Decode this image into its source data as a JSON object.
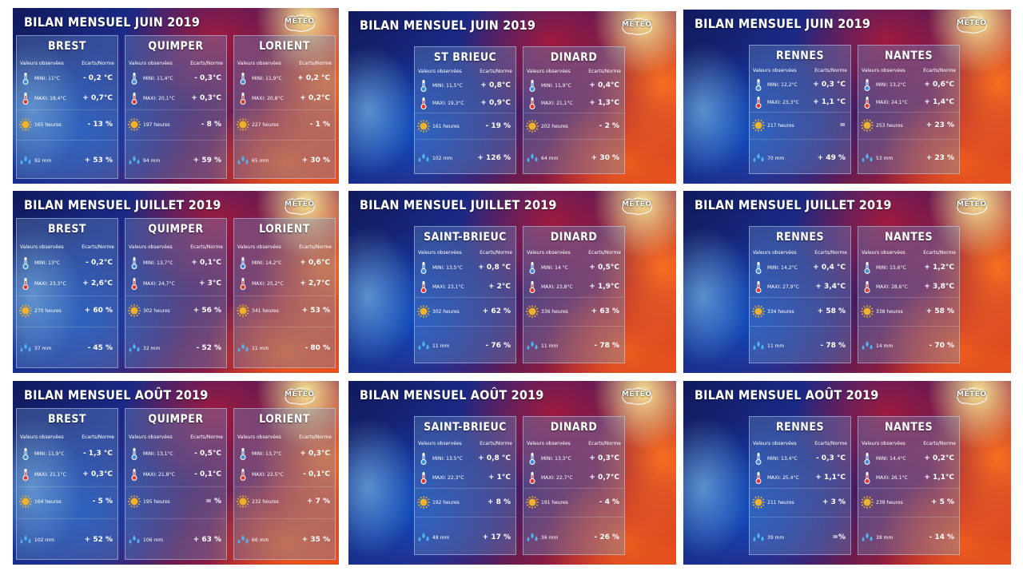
{
  "logo_text": "MÉTÉO",
  "header_obs": "Valeurs observées",
  "header_norm": "Ecarts/Norme",
  "colors": {
    "sun": "#f0b22a",
    "drop": "#4fb2ef",
    "thermo_blue": "#3f8fe0",
    "thermo_red": "#e03a2a"
  },
  "icons": {
    "mini": "thermometer-cold-icon",
    "maxi": "thermometer-hot-icon",
    "sun": "sun-icon",
    "rain": "raindrops-icon"
  },
  "panels": [
    {
      "title": "BILAN MENSUEL JUIN 2019",
      "cities": [
        {
          "name": "BREST",
          "mini": "MINI: 11°C",
          "mini_d": "- 0,2 °C",
          "maxi": "MAXI: 19,4°C",
          "maxi_d": "+ 0,7°C",
          "sun": "165 heures",
          "sun_d": "- 13 %",
          "rain": "92 mm",
          "rain_d": "+ 53 %"
        },
        {
          "name": "QUIMPER",
          "mini": "MINI: 11,4°C",
          "mini_d": "- 0,3°C",
          "maxi": "MAXI: 20,1°C",
          "maxi_d": "+ 0,3°C",
          "sun": "197 heures",
          "sun_d": "- 8 %",
          "rain": "94 mm",
          "rain_d": "+ 59 %"
        },
        {
          "name": "LORIENT",
          "mini": "MINI: 11,9°C",
          "mini_d": "+ 0,2 °C",
          "maxi": "MAXI: 20,8°C",
          "maxi_d": "+ 0,2°C",
          "sun": "227 heures",
          "sun_d": "- 1 %",
          "rain": "65 mm",
          "rain_d": "+ 30 %"
        }
      ]
    },
    {
      "title": "BILAN MENSUEL JUIN 2019",
      "cities": [
        {
          "name": "ST BRIEUC",
          "mini": "MINI: 11,5°C",
          "mini_d": "+ 0,8°C",
          "maxi": "MAXI: 19,3°C",
          "maxi_d": "+ 0,9°C",
          "sun": "161 heures",
          "sun_d": "- 19 %",
          "rain": "102 mm",
          "rain_d": "+ 126 %"
        },
        {
          "name": "DINARD",
          "mini": "MINI: 11,9°C",
          "mini_d": "+ 0,4°C",
          "maxi": "MAXI: 21,1°C",
          "maxi_d": "+ 1,3°C",
          "sun": "202 heures",
          "sun_d": "- 2 %",
          "rain": "64 mm",
          "rain_d": "+ 30 %"
        }
      ]
    },
    {
      "title": "BILAN MENSUEL JUIN 2019",
      "cities": [
        {
          "name": "RENNES",
          "mini": "MINI: 12,2°C",
          "mini_d": "+ 0,3 °C",
          "maxi": "MAXI: 23,3°C",
          "maxi_d": "+ 1,1 °C",
          "sun": "217 heures",
          "sun_d": "=",
          "rain": "70 mm",
          "rain_d": "+ 49 %"
        },
        {
          "name": "NANTES",
          "mini": "MINI: 13,2°C",
          "mini_d": "+ 0,6°C",
          "maxi": "MAXI: 24,1°C",
          "maxi_d": "+ 1,4°C",
          "sun": "253 heures",
          "sun_d": "+ 23 %",
          "rain": "53 mm",
          "rain_d": "+ 23 %"
        }
      ]
    },
    {
      "title": "BILAN MENSUEL JUILLET 2019",
      "cities": [
        {
          "name": "BREST",
          "mini": "MINI: 13°C",
          "mini_d": "- 0,2°C",
          "maxi": "MAXI: 23,3°C",
          "maxi_d": "+ 2,6°C",
          "sun": "270 heures",
          "sun_d": "+ 60 %",
          "rain": "37 mm",
          "rain_d": "- 45 %"
        },
        {
          "name": "QUIMPER",
          "mini": "MINI: 13,7°C",
          "mini_d": "+ 0,1°C",
          "maxi": "MAXI: 24,7°C",
          "maxi_d": "+ 3°C",
          "sun": "302 heures",
          "sun_d": "+ 56 %",
          "rain": "32 mm",
          "rain_d": "- 52 %"
        },
        {
          "name": "LORIENT",
          "mini": "MINI: 14,2°C",
          "mini_d": "+ 0,6°C",
          "maxi": "MAXI: 25,2°C",
          "maxi_d": "+ 2,7°C",
          "sun": "341 heures",
          "sun_d": "+ 53 %",
          "rain": "11 mm",
          "rain_d": "- 80 %"
        }
      ]
    },
    {
      "title": "BILAN MENSUEL JUILLET 2019",
      "cities": [
        {
          "name": "SAINT-BRIEUC",
          "mini": "MINI: 13,5°C",
          "mini_d": "+ 0,8 °C",
          "maxi": "MAXI: 23,1°C",
          "maxi_d": "+ 2°C",
          "sun": "302 heures",
          "sun_d": "+ 62 %",
          "rain": "11 mm",
          "rain_d": "- 76 %"
        },
        {
          "name": "DINARD",
          "mini": "MINI: 14 °C",
          "mini_d": "+ 0,5°C",
          "maxi": "MAXI: 23,8°C",
          "maxi_d": "+ 1,9°C",
          "sun": "336 heures",
          "sun_d": "+ 63 %",
          "rain": "11 mm",
          "rain_d": "- 78 %"
        }
      ]
    },
    {
      "title": "BILAN MENSUEL JUILLET 2019",
      "cities": [
        {
          "name": "RENNES",
          "mini": "MINI: 14,2°C",
          "mini_d": "+ 0,4 °C",
          "maxi": "MAXI: 27,9°C",
          "maxi_d": "+ 3,4°C",
          "sun": "334 heures",
          "sun_d": "+ 58 %",
          "rain": "11 mm",
          "rain_d": "- 78 %"
        },
        {
          "name": "NANTES",
          "mini": "MINI: 15,6°C",
          "mini_d": "+ 1,2°C",
          "maxi": "MAXI: 28,6°C",
          "maxi_d": "+ 3,8°C",
          "sun": "338 heures",
          "sun_d": "+ 58 %",
          "rain": "14 mm",
          "rain_d": "- 70 %"
        }
      ]
    },
    {
      "title": "BILAN MENSUEL AOÛT 2019",
      "cities": [
        {
          "name": "BREST",
          "mini": "MINI: 11,9°C",
          "mini_d": "- 1,3 °C",
          "maxi": "MAXI: 21,1°C",
          "maxi_d": "+ 0,3°C",
          "sun": "164 heures",
          "sun_d": "- 5 %",
          "rain": "102 mm",
          "rain_d": "+ 52 %"
        },
        {
          "name": "QUIMPER",
          "mini": "MINI: 13,1°C",
          "mini_d": "- 0,5°C",
          "maxi": "MAXI: 21,8°C",
          "maxi_d": "- 0,1°C",
          "sun": "195 heures",
          "sun_d": "= %",
          "rain": "106 mm",
          "rain_d": "+ 63 %"
        },
        {
          "name": "LORIENT",
          "mini": "MINI: 13,7°C",
          "mini_d": "+ 0,3°C",
          "maxi": "MAXI: 22,5°C",
          "maxi_d": "- 0,1°C",
          "sun": "232 heures",
          "sun_d": "+ 7 %",
          "rain": "66 mm",
          "rain_d": "+ 35 %"
        }
      ]
    },
    {
      "title": "BILAN MENSUEL AOÛT 2019",
      "cities": [
        {
          "name": "SAINT-BRIEUC",
          "mini": "MINI: 13,5°C",
          "mini_d": "+ 0,8 °C",
          "maxi": "MAXI: 22,3°C",
          "maxi_d": "+ 1°C",
          "sun": "192 heures",
          "sun_d": "+ 8 %",
          "rain": "48 mm",
          "rain_d": "+ 17 %"
        },
        {
          "name": "DINARD",
          "mini": "MINI: 13,3°C",
          "mini_d": "+ 0,3°C",
          "maxi": "MAXI: 22,7°C",
          "maxi_d": "+ 0,7°C",
          "sun": "191 heures",
          "sun_d": "- 4 %",
          "rain": "36 mm",
          "rain_d": "- 26 %"
        }
      ]
    },
    {
      "title": "BILAN MENSUEL AOÛT 2019",
      "cities": [
        {
          "name": "RENNES",
          "mini": "MINI: 13,4°C",
          "mini_d": "- 0,3 °C",
          "maxi": "MAXI: 25,4°C",
          "maxi_d": "+ 1,1°C",
          "sun": "211 heures",
          "sun_d": "+ 3 %",
          "rain": "39 mm",
          "rain_d": "=%"
        },
        {
          "name": "NANTES",
          "mini": "MINI: 14,4°C",
          "mini_d": "+ 0,2°C",
          "maxi": "MAXI: 26,1°C",
          "maxi_d": "+ 1,1°C",
          "sun": "239 heures",
          "sun_d": "+ 5 %",
          "rain": "38 mm",
          "rain_d": "- 14 %"
        }
      ]
    }
  ]
}
